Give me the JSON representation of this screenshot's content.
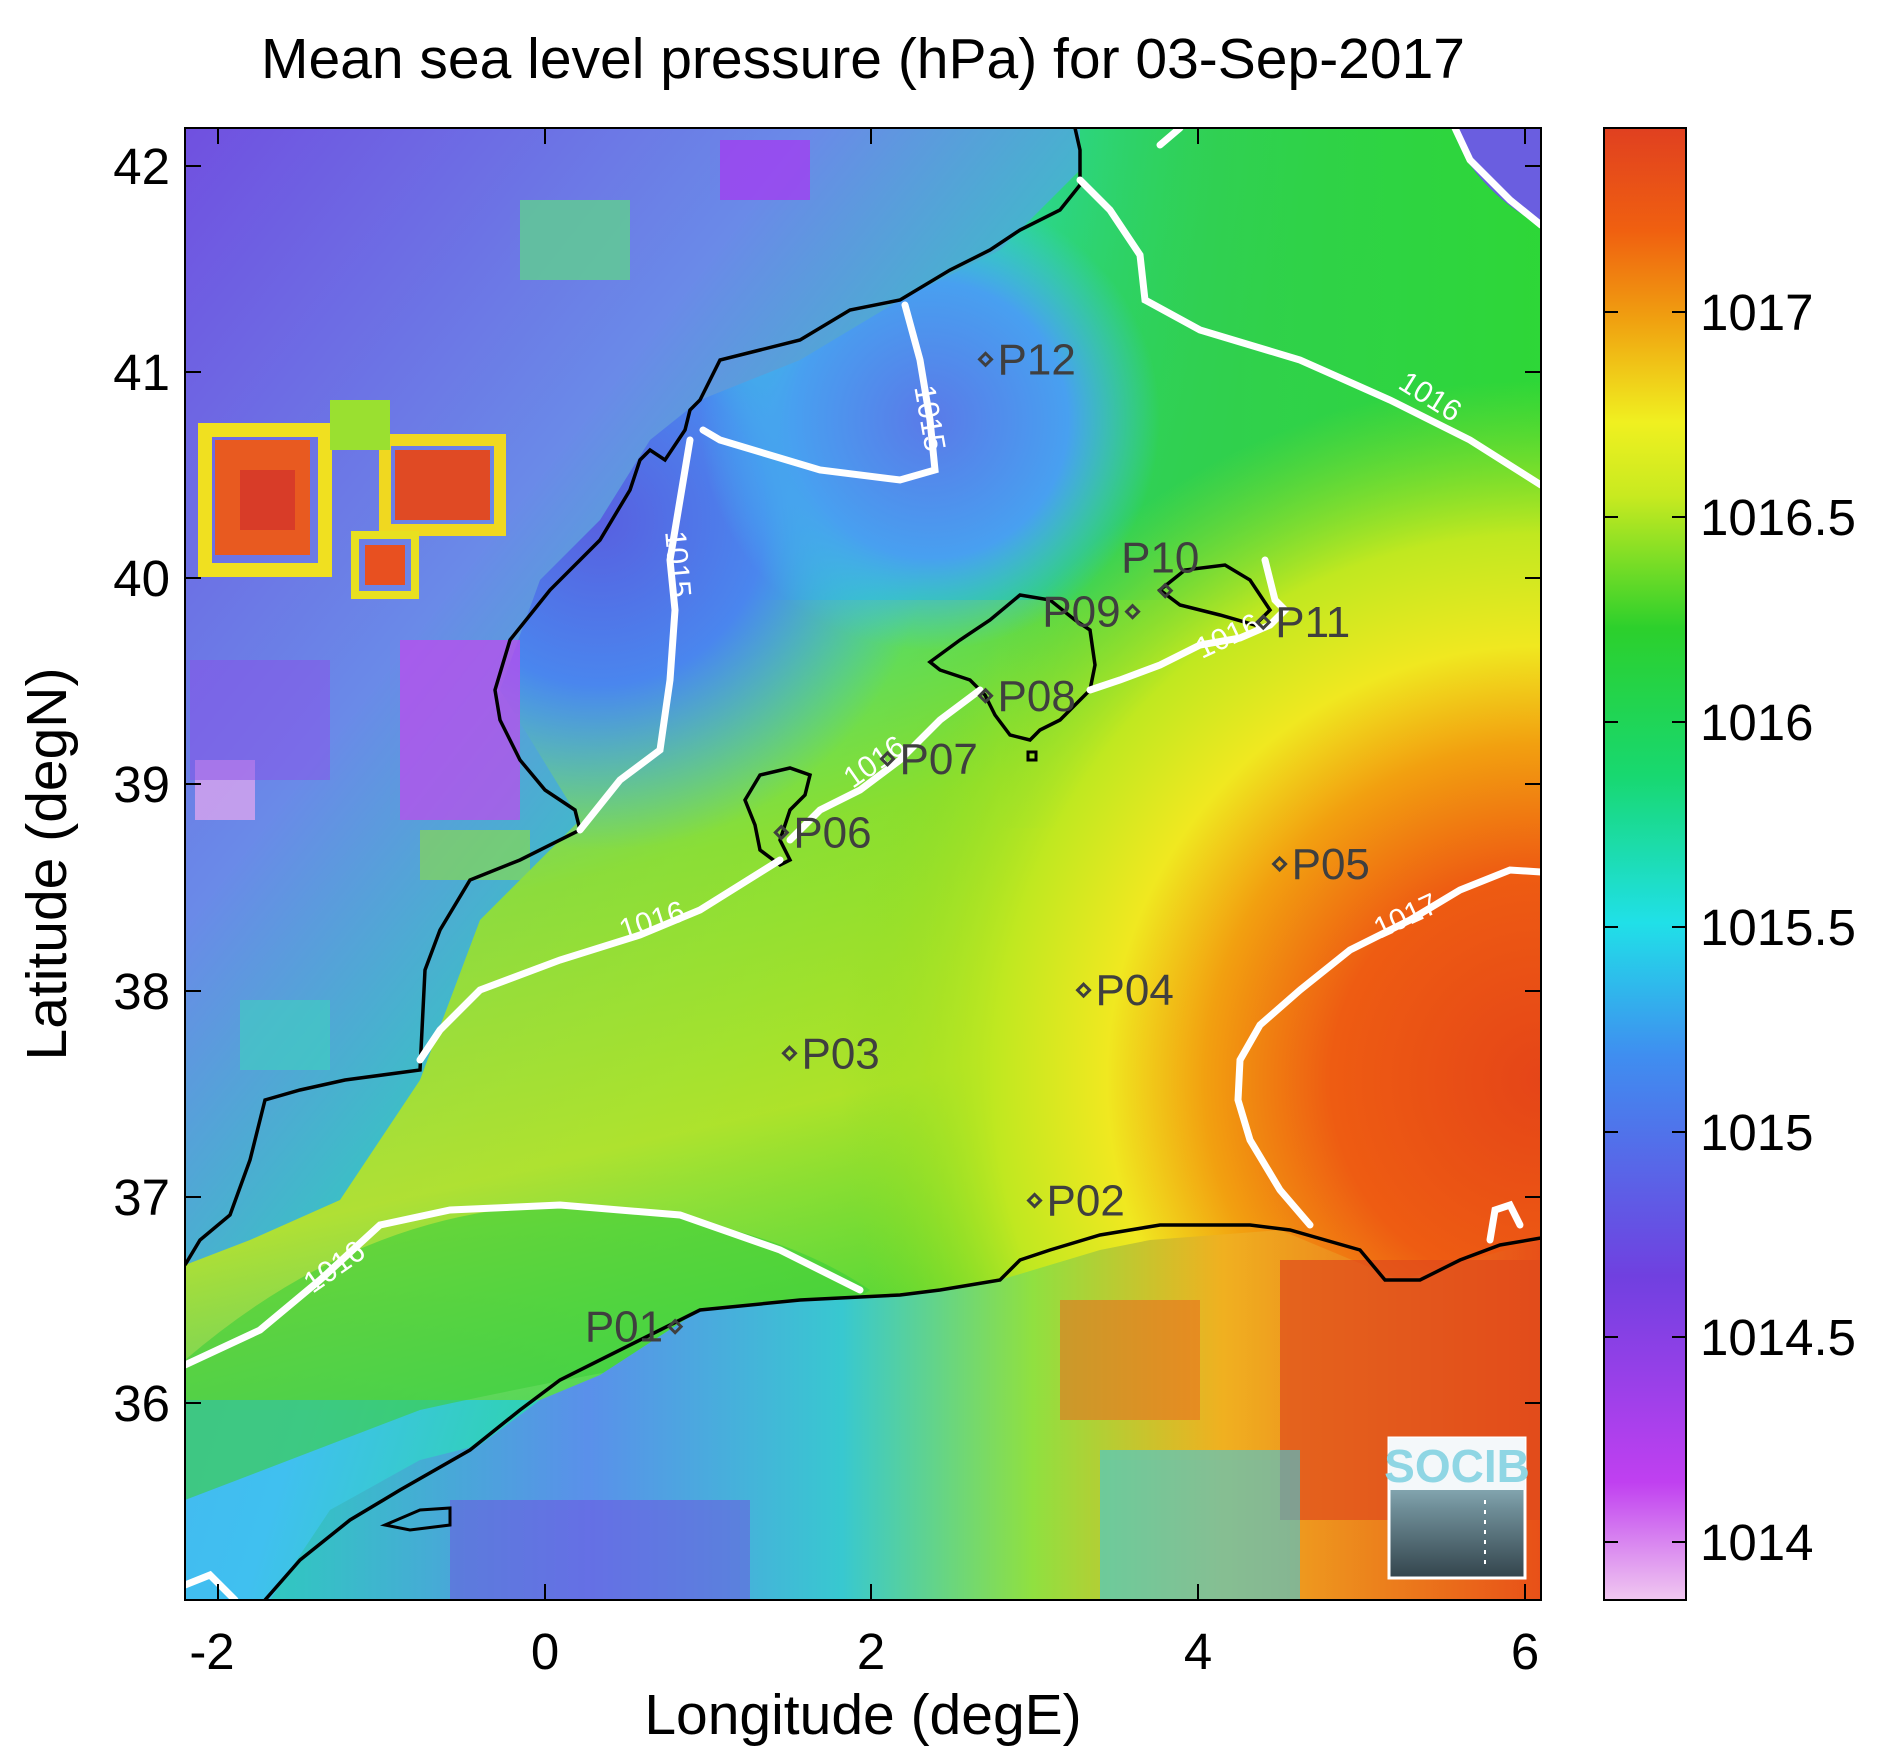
{
  "title": "Mean sea level pressure (hPa) for 03-Sep-2017",
  "xlabel": "Longitude (degE)",
  "ylabel": "Latitude (degN)",
  "x_ticks": [
    "-2",
    "0",
    "2",
    "4",
    "6"
  ],
  "y_ticks": [
    "42",
    "41",
    "40",
    "39",
    "38",
    "37",
    "36"
  ],
  "colorbar_ticks": [
    "1017",
    "1016.5",
    "1016",
    "1015.5",
    "1015",
    "1014.5",
    "1014"
  ],
  "contour_labels": {
    "c1015_north": "1015",
    "c1015_west": "1015",
    "c1016_ne": "1016",
    "c1016_balearic": "1016",
    "c1016_ibiza": "1016",
    "c1016_coast": "1016",
    "c1016_south": "1016",
    "c1017": "1017"
  },
  "logo_text": "SOCIB",
  "chart_data": {
    "type": "heatmap",
    "variable": "Mean sea level pressure",
    "units": "hPa",
    "date": "03-Sep-2017",
    "xlim": [
      -2.2,
      6.1
    ],
    "ylim": [
      35.2,
      42.2
    ],
    "clim": [
      1013.85,
      1017.45
    ],
    "colormap": [
      "#f0c8f0",
      "#c040f0",
      "#7040e0",
      "#3f8ef0",
      "#20e0e8",
      "#18d870",
      "#2cd02c",
      "#a0e020",
      "#f0f020",
      "#f0a010",
      "#f06010",
      "#e04020"
    ],
    "contour_levels": [
      1015,
      1016,
      1017
    ],
    "stations": [
      {
        "name": "P01",
        "lon": 0.8,
        "lat": 36.5
      },
      {
        "name": "P02",
        "lon": 3.0,
        "lat": 37.1
      },
      {
        "name": "P03",
        "lon": 1.5,
        "lat": 37.8
      },
      {
        "name": "P04",
        "lon": 3.3,
        "lat": 38.1
      },
      {
        "name": "P05",
        "lon": 4.5,
        "lat": 38.7
      },
      {
        "name": "P06",
        "lon": 1.45,
        "lat": 38.85
      },
      {
        "name": "P07",
        "lon": 2.1,
        "lat": 39.2
      },
      {
        "name": "P08",
        "lon": 2.7,
        "lat": 39.5
      },
      {
        "name": "P09",
        "lon": 3.6,
        "lat": 39.9
      },
      {
        "name": "P10",
        "lon": 3.8,
        "lat": 40.0
      },
      {
        "name": "P11",
        "lon": 4.4,
        "lat": 39.85
      },
      {
        "name": "P12",
        "lon": 2.7,
        "lat": 41.1
      }
    ]
  }
}
